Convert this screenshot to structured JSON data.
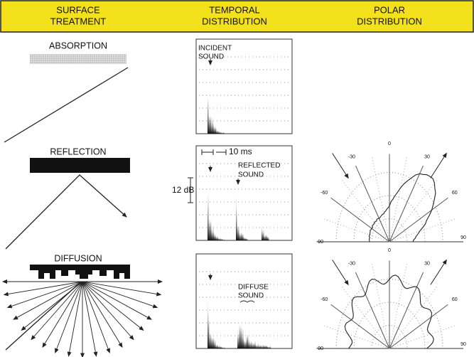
{
  "header": {
    "columns": [
      {
        "lines": [
          "SURFACE",
          "TREATMENT"
        ]
      },
      {
        "lines": [
          "TEMPORAL",
          "DISTRIBUTION"
        ]
      },
      {
        "lines": [
          "POLAR",
          "DISTRIBUTION"
        ]
      }
    ]
  },
  "rows": [
    {
      "label": "ABSORPTION",
      "temporal_labels": [
        "INCIDENT",
        "SOUND"
      ]
    },
    {
      "label": "REFLECTION",
      "temporal_labels": [
        "REFLECTED",
        "SOUND"
      ],
      "time_scale": "10 ms",
      "level_scale": "12 dB"
    },
    {
      "label": "DIFFUSION",
      "temporal_labels": [
        "DIFFUSE",
        "SOUND"
      ]
    }
  ],
  "polar_labels": [
    "-90",
    "-60",
    "-30",
    "0",
    "30",
    "60",
    "90"
  ]
}
